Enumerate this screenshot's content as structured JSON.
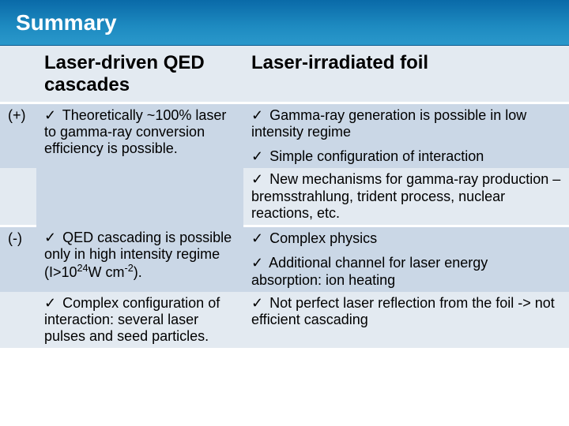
{
  "title": "Summary",
  "check": "✓",
  "headers": {
    "blank": "",
    "col1": "Laser-driven QED cascades",
    "col2": "Laser-irradiated foil"
  },
  "rows": {
    "plus": {
      "sign": "(+)",
      "c1a": "  Theoretically ~100% laser to gamma-ray conversion efficiency is possible.",
      "c2a": "  Gamma-ray generation is possible in low intensity regime",
      "c2b": "  Simple configuration of interaction",
      "c2c": "  New mechanisms for gamma-ray production – bremsstrahlung, trident process, nuclear reactions, etc."
    },
    "minus": {
      "sign": "(-)",
      "c1a_pre": "  QED cascading is possible only in high intensity regime (I>10",
      "c1a_sup": "24",
      "c1a_post": "W cm",
      "c1a_sup2": "-2",
      "c1a_end": ").",
      "c1b": "  Complex configuration of interaction: several laser pulses and seed particles.",
      "c2a": "  Complex physics",
      "c2b": "  Additional channel for laser energy absorption: ion heating",
      "c2c": "  Not perfect laser reflection from the foil -> not efficient cascading"
    }
  },
  "colors": {
    "band_top": "#0a6aa8",
    "band_bot": "#2a98cb",
    "row_odd": "#cad7e6",
    "row_even": "#e3eaf1"
  }
}
